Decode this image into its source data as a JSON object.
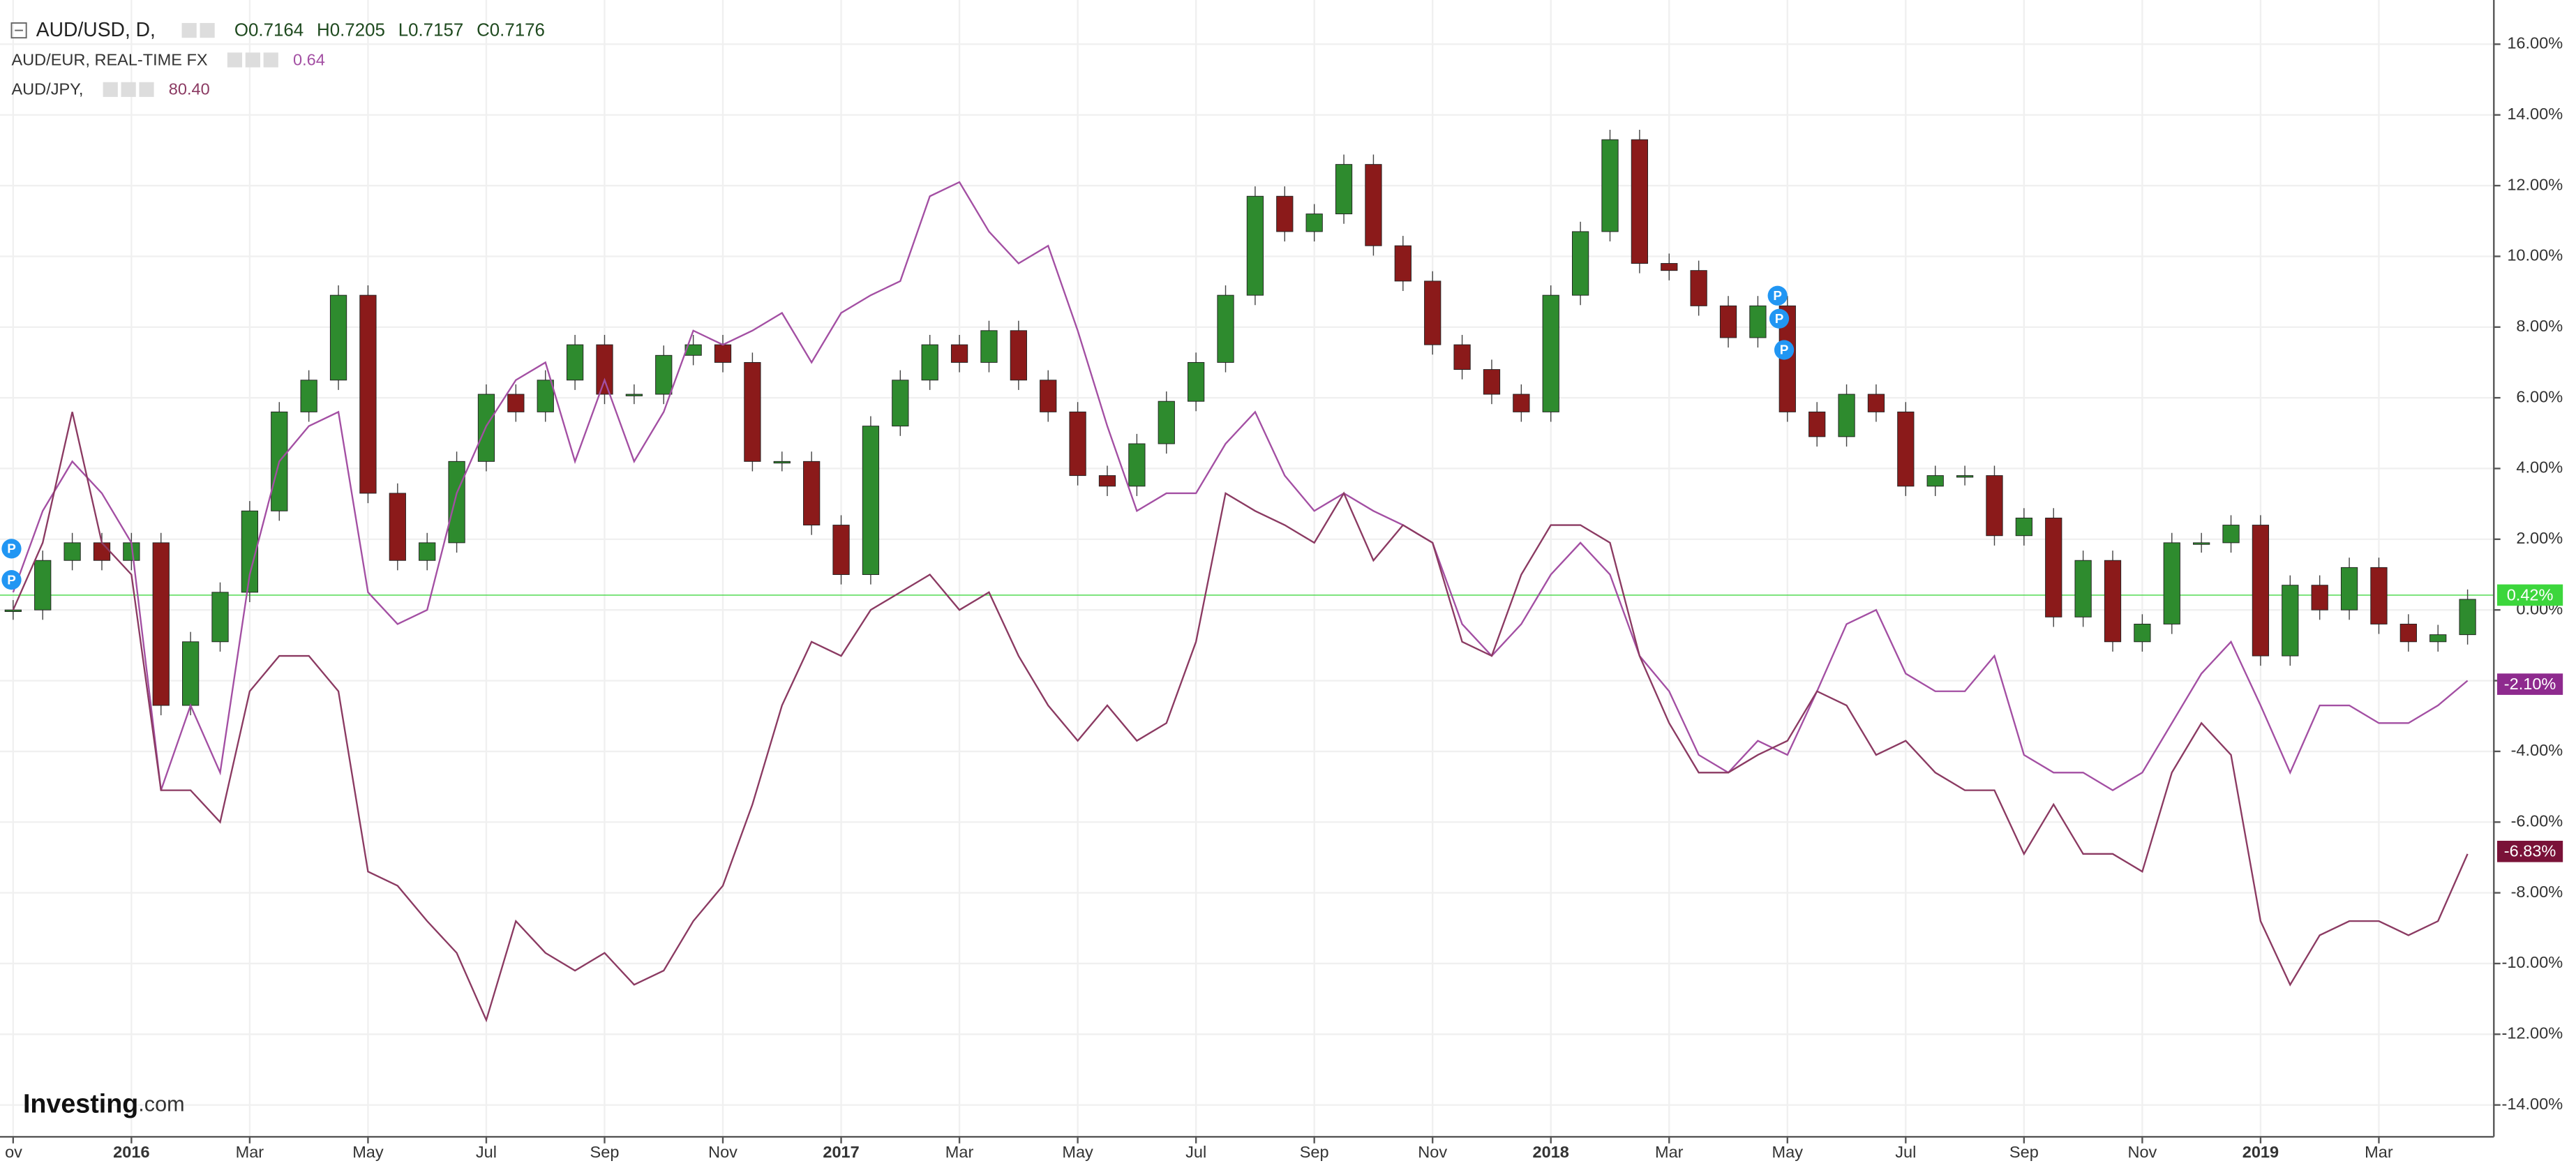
{
  "chart_data": {
    "type": "candle_compare",
    "header": {
      "symbol": "AUD/USD, D,",
      "ohlc": [
        "O0.7164",
        "H0.7205",
        "L0.7157",
        "C0.7176"
      ]
    },
    "categories": [
      "ov",
      null,
      null,
      null,
      "2016",
      null,
      null,
      null,
      "Mar",
      null,
      null,
      null,
      "May",
      null,
      null,
      null,
      "Jul",
      null,
      null,
      null,
      "Sep",
      null,
      null,
      null,
      "Nov",
      null,
      null,
      null,
      "2017",
      null,
      null,
      null,
      "Mar",
      null,
      null,
      null,
      "May",
      null,
      null,
      null,
      "Jul",
      null,
      null,
      null,
      "Sep",
      null,
      null,
      null,
      "Nov",
      null,
      null,
      null,
      "2018",
      null,
      null,
      null,
      "Mar",
      null,
      null,
      null,
      "May",
      null,
      null,
      null,
      "Jul",
      null,
      null,
      null,
      "Sep",
      null,
      null,
      null,
      "Nov",
      null,
      null,
      null,
      "2019",
      null,
      null,
      null,
      "Mar",
      null,
      null,
      null
    ],
    "series": [
      {
        "name": "AUD/USD",
        "style": "candles",
        "color": "#8b1a1a",
        "up_color": "#2e8b2e",
        "last": 0.42,
        "last_label": "0.42%",
        "last_color": "#3cd63c",
        "values": [
          0,
          1.4,
          1.9,
          1.4,
          1.9,
          -2.7,
          -0.9,
          0.5,
          2.8,
          5.6,
          6.5,
          8.9,
          3.3,
          1.4,
          1.9,
          4.2,
          6.1,
          5.6,
          6.5,
          7.5,
          6.1,
          6.1,
          7.2,
          7.5,
          7.0,
          4.2,
          4.2,
          2.4,
          1.0,
          5.2,
          6.5,
          7.5,
          7.0,
          7.9,
          6.5,
          5.6,
          3.8,
          3.5,
          4.7,
          5.9,
          7.0,
          8.9,
          11.7,
          10.7,
          11.2,
          12.6,
          10.3,
          9.3,
          7.5,
          6.8,
          6.1,
          5.6,
          8.9,
          10.7,
          13.3,
          9.8,
          9.6,
          8.6,
          7.7,
          8.6,
          5.6,
          4.9,
          6.1,
          5.6,
          3.5,
          3.8,
          3.8,
          2.1,
          2.6,
          -0.2,
          1.4,
          -0.9,
          -0.4,
          1.9,
          1.9,
          2.4,
          -1.3,
          0.7,
          0.0,
          1.2,
          -0.4,
          -0.9,
          -0.7,
          0.3
        ]
      },
      {
        "name": "AUD/EUR, REAL-TIME FX",
        "quote": "0.64",
        "style": "line",
        "color": "#a34fa3",
        "last": -2.1,
        "last_label": "-2.10%",
        "last_color": "#8e2a8e",
        "values": [
          0.5,
          2.8,
          4.2,
          3.3,
          1.9,
          -5.1,
          -2.7,
          -4.6,
          1.0,
          4.2,
          5.2,
          5.6,
          0.5,
          -0.4,
          0.0,
          3.3,
          5.2,
          6.5,
          7.0,
          4.2,
          6.5,
          4.2,
          5.6,
          7.9,
          7.5,
          7.9,
          8.4,
          7.0,
          8.4,
          8.9,
          9.3,
          11.7,
          12.1,
          10.7,
          9.8,
          10.3,
          7.9,
          5.2,
          2.8,
          3.3,
          3.3,
          4.7,
          5.6,
          3.8,
          2.8,
          3.3,
          2.8,
          2.4,
          1.9,
          -0.4,
          -1.3,
          -0.4,
          1.0,
          1.9,
          1.0,
          -1.3,
          -2.3,
          -4.1,
          -4.6,
          -3.7,
          -4.1,
          -2.3,
          -0.4,
          0.0,
          -1.8,
          -2.3,
          -2.3,
          -1.3,
          -4.1,
          -4.6,
          -4.6,
          -5.1,
          -4.6,
          -3.2,
          -1.8,
          -0.9,
          -2.7,
          -4.6,
          -2.7,
          -2.7,
          -3.2,
          -3.2,
          -2.7,
          -2.0
        ]
      },
      {
        "name": "AUD/JPY,",
        "quote": "80.40",
        "style": "line",
        "color": "#8b3a62",
        "last": -6.83,
        "last_label": "-6.83%",
        "last_color": "#7a1238",
        "values": [
          0,
          1.9,
          5.6,
          1.9,
          1.0,
          -5.1,
          -5.1,
          -6.0,
          -2.3,
          -1.3,
          -1.3,
          -2.3,
          -7.4,
          -7.8,
          -8.8,
          -9.7,
          -11.6,
          -8.8,
          -9.7,
          -10.2,
          -9.7,
          -10.6,
          -10.2,
          -8.8,
          -7.8,
          -5.5,
          -2.7,
          -0.9,
          -1.3,
          0.0,
          0.5,
          1.0,
          0.0,
          0.5,
          -1.3,
          -2.7,
          -3.7,
          -2.7,
          -3.7,
          -3.2,
          -0.9,
          3.3,
          2.8,
          2.4,
          1.9,
          3.3,
          1.4,
          2.4,
          1.9,
          -0.9,
          -1.3,
          1.0,
          2.4,
          2.4,
          1.9,
          -1.3,
          -3.2,
          -4.6,
          -4.6,
          -4.1,
          -3.7,
          -2.3,
          -2.7,
          -4.1,
          -3.7,
          -4.6,
          -5.1,
          -5.1,
          -6.9,
          -5.5,
          -6.9,
          -6.9,
          -7.4,
          -4.6,
          -3.2,
          -4.1,
          -8.8,
          -10.6,
          -9.2,
          -8.8,
          -8.8,
          -9.2,
          -8.8,
          -6.9
        ]
      }
    ],
    "ylim": [
      -14.9,
      17.25
    ],
    "yticks": [
      {
        "value": 16,
        "label": "16.00%"
      },
      {
        "value": 14,
        "label": "14.00%"
      },
      {
        "value": 12,
        "label": "12.00%"
      },
      {
        "value": 10,
        "label": "10.00%"
      },
      {
        "value": 8,
        "label": "8.00%"
      },
      {
        "value": 6,
        "label": "6.00%"
      },
      {
        "value": 4,
        "label": "4.00%"
      },
      {
        "value": 2,
        "label": "2.00%"
      },
      {
        "value": 0,
        "label": "0.00%"
      },
      {
        "value": -2,
        "label": "-2.00%"
      },
      {
        "value": -4,
        "label": "-4.00%"
      },
      {
        "value": -6,
        "label": "-6.00%"
      },
      {
        "value": -8,
        "label": "-8.00%"
      },
      {
        "value": -10,
        "label": "-10.00%"
      },
      {
        "value": -12,
        "label": "-12.00%"
      },
      {
        "value": -14,
        "label": "-14.00%"
      }
    ],
    "grid": true,
    "year_labels_bold": true,
    "event_markers": [
      "P",
      "P",
      "P",
      "P",
      "P"
    ],
    "logo": {
      "main": "Investing",
      "suffix": ".com"
    }
  }
}
